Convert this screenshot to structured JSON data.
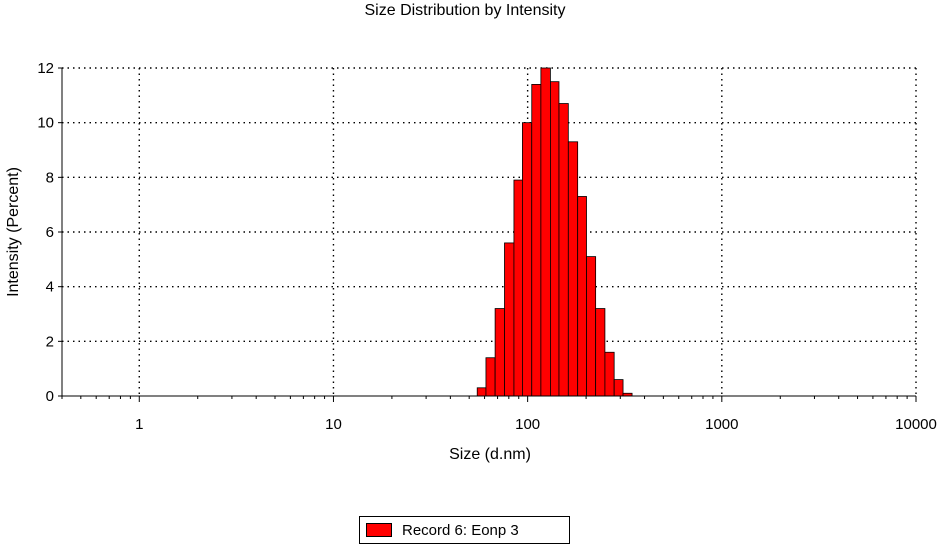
{
  "chart_data": {
    "type": "bar",
    "title": "Size Distribution by Intensity",
    "xlabel": "Size (d.nm)",
    "ylabel": "Intensity (Percent)",
    "x_scale": "log",
    "xlim": [
      0.4,
      10000
    ],
    "ylim": [
      0,
      12
    ],
    "x_ticks": [
      1,
      10,
      100,
      1000,
      10000
    ],
    "y_ticks": [
      0,
      2,
      4,
      6,
      8,
      10,
      12
    ],
    "grid": true,
    "legend_position": "bottom-center",
    "bar_color": "#ff0000",
    "series": [
      {
        "name": "Record 6: Eonp 3",
        "bins": [
          {
            "x0": 55.0,
            "x1": 61.0,
            "value": 0.3
          },
          {
            "x0": 61.0,
            "x1": 68.0,
            "value": 1.4
          },
          {
            "x0": 68.0,
            "x1": 76.0,
            "value": 3.2
          },
          {
            "x0": 76.0,
            "x1": 85.0,
            "value": 5.6
          },
          {
            "x0": 85.0,
            "x1": 94.0,
            "value": 7.9
          },
          {
            "x0": 94.0,
            "x1": 105.0,
            "value": 10.0
          },
          {
            "x0": 105.0,
            "x1": 117.0,
            "value": 11.4
          },
          {
            "x0": 117.0,
            "x1": 131.0,
            "value": 12.0
          },
          {
            "x0": 131.0,
            "x1": 145.0,
            "value": 11.5
          },
          {
            "x0": 145.0,
            "x1": 162.0,
            "value": 10.7
          },
          {
            "x0": 162.0,
            "x1": 181.0,
            "value": 9.3
          },
          {
            "x0": 181.0,
            "x1": 201.0,
            "value": 7.3
          },
          {
            "x0": 201.0,
            "x1": 224.0,
            "value": 5.1
          },
          {
            "x0": 224.0,
            "x1": 250.0,
            "value": 3.2
          },
          {
            "x0": 250.0,
            "x1": 279.0,
            "value": 1.6
          },
          {
            "x0": 279.0,
            "x1": 310.0,
            "value": 0.6
          },
          {
            "x0": 310.0,
            "x1": 345.0,
            "value": 0.1
          }
        ]
      }
    ]
  }
}
